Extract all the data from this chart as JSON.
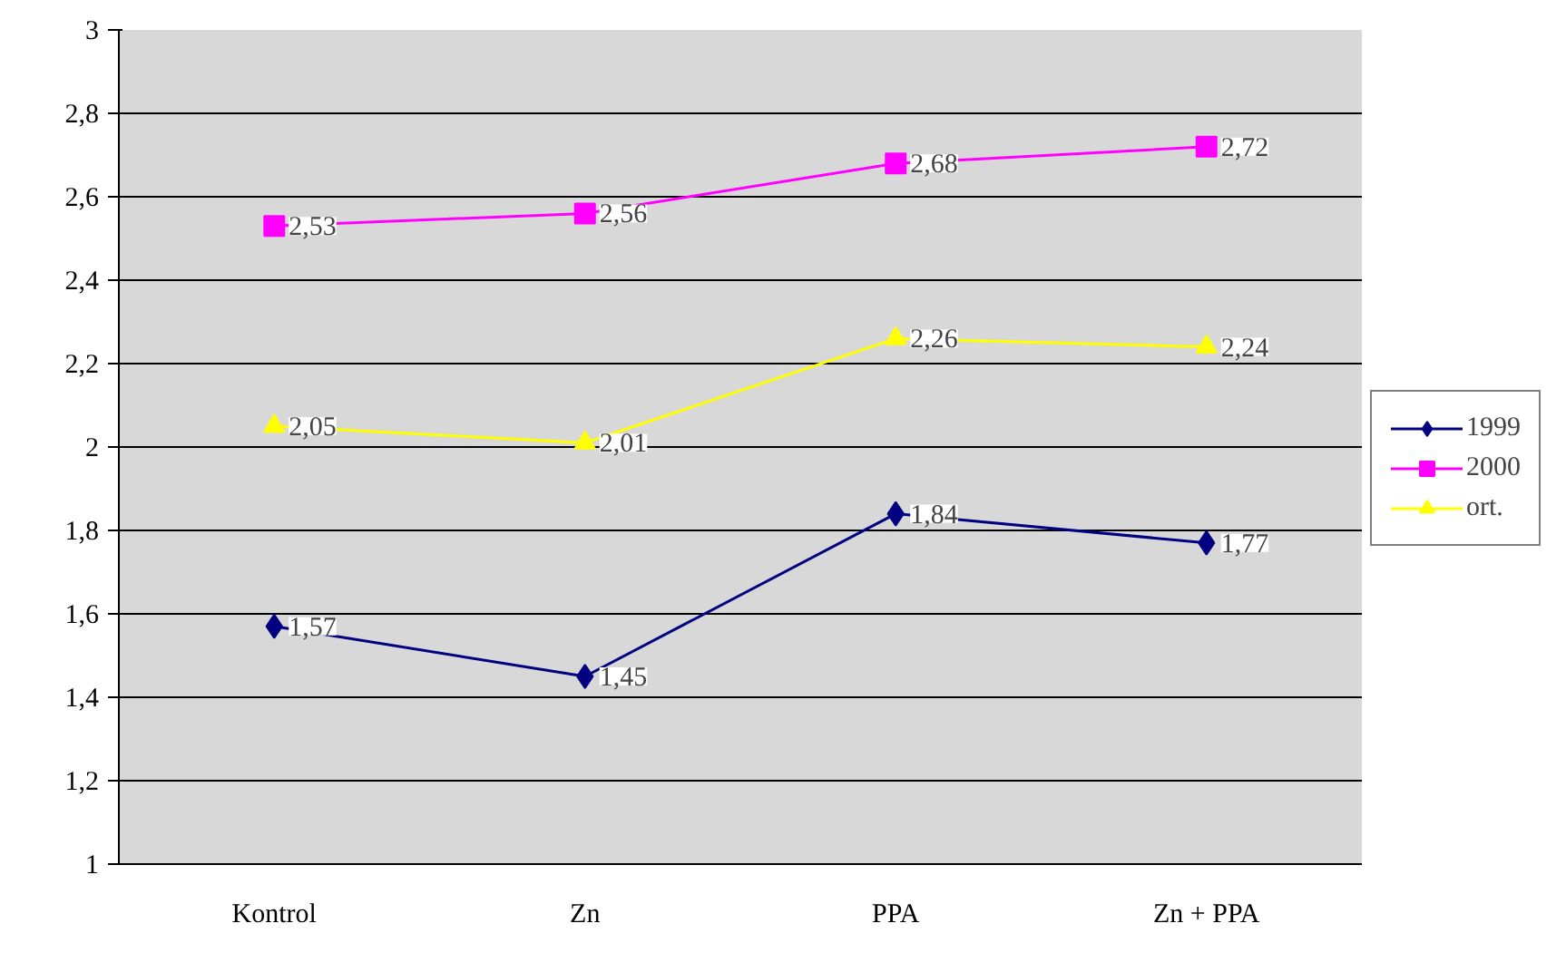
{
  "chart_data": {
    "type": "line",
    "categories": [
      "Kontrol",
      "Zn",
      "PPA",
      "Zn + PPA"
    ],
    "series": [
      {
        "name": "1999",
        "color": "#000080",
        "marker": "diamond",
        "values": [
          1.57,
          1.45,
          1.84,
          1.77
        ],
        "value_labels": [
          "1,57",
          "1,45",
          "1,84",
          "1,77"
        ]
      },
      {
        "name": "2000",
        "color": "#ff00ff",
        "marker": "square",
        "values": [
          2.53,
          2.56,
          2.68,
          2.72
        ],
        "value_labels": [
          "2,53",
          "2,56",
          "2,68",
          "2,72"
        ]
      },
      {
        "name": "ort.",
        "color": "#ffff00",
        "marker": "triangle",
        "values": [
          2.05,
          2.01,
          2.26,
          2.24
        ],
        "value_labels": [
          "2,05",
          "2,01",
          "2,26",
          "2,24"
        ]
      }
    ],
    "ylim": [
      1,
      3
    ],
    "yticks": [
      1,
      {
        "value": 1.2,
        "label": "1,2"
      },
      {
        "value": 1.4,
        "label": "1,4"
      },
      {
        "value": 1.6,
        "label": "1,6"
      },
      {
        "value": 1.8,
        "label": "1,8"
      },
      2,
      {
        "value": 2.2,
        "label": "2,2"
      },
      {
        "value": 2.4,
        "label": "2,4"
      },
      {
        "value": 2.6,
        "label": "2,6"
      },
      {
        "value": 2.8,
        "label": "2,8"
      },
      3
    ],
    "grid": "y",
    "legend": "right",
    "line_style": "solid"
  }
}
